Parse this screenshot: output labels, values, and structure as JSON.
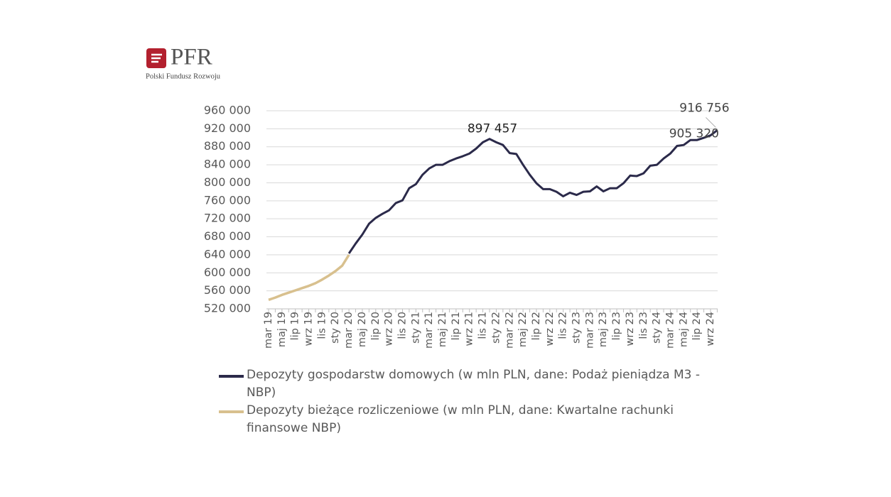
{
  "logo": {
    "name": "PFR",
    "tagline": "Polski Fundusz Rozwoju"
  },
  "chart_data": {
    "type": "line",
    "categories": [
      "mar 19",
      null,
      "maj 19",
      null,
      "lip 19",
      null,
      "wrz 19",
      null,
      "lis 19",
      null,
      "sty 20",
      null,
      "mar 20",
      null,
      "maj 20",
      null,
      "lip 20",
      null,
      "wrz 20",
      null,
      "lis 20",
      null,
      "sty 21",
      null,
      "mar 21",
      null,
      "maj 21",
      null,
      "lip 21",
      null,
      "wrz 21",
      null,
      "lis 21",
      null,
      "sty 22",
      null,
      "mar 22",
      null,
      "maj 22",
      null,
      "lip 22",
      null,
      "wrz 22",
      null,
      "lis 22",
      null,
      "sty 23",
      null,
      "mar 23",
      null,
      "maj 23",
      null,
      "lip 23",
      null,
      "wrz 23",
      null,
      "lis 23",
      null,
      "sty 24",
      null,
      "mar 24",
      null,
      "maj 24",
      null,
      "lip 24",
      null,
      "wrz 24",
      null
    ],
    "series": [
      {
        "name": "Depozyty gospodarstw domowych (w mln PLN, dane: Podaż pieniądza M3 - NBP)",
        "color": "#2b2a4a",
        "values": [
          null,
          null,
          null,
          null,
          null,
          null,
          null,
          null,
          null,
          null,
          null,
          null,
          643000,
          665000,
          685000,
          709000,
          722000,
          731000,
          739000,
          755000,
          761000,
          788000,
          797000,
          818000,
          832000,
          840000,
          840000,
          848000,
          854000,
          859000,
          865000,
          876000,
          890000,
          897457,
          890000,
          884000,
          866000,
          864000,
          840000,
          818000,
          799000,
          786000,
          786000,
          780000,
          770000,
          778000,
          773000,
          780000,
          781000,
          792000,
          781000,
          788000,
          788000,
          799000,
          816000,
          815000,
          821000,
          838000,
          840000,
          854000,
          865000,
          882000,
          884000,
          895000,
          895000,
          900000,
          905320,
          916756
        ],
        "value_labels": [
          null,
          null,
          null,
          null,
          null,
          null,
          null,
          null,
          null,
          null,
          null,
          null,
          null,
          null,
          null,
          null,
          null,
          null,
          null,
          null,
          null,
          null,
          null,
          null,
          null,
          null,
          null,
          null,
          null,
          null,
          null,
          null,
          null,
          "897 457",
          null,
          null,
          null,
          null,
          null,
          null,
          null,
          null,
          null,
          null,
          null,
          null,
          null,
          null,
          null,
          null,
          null,
          null,
          null,
          null,
          null,
          null,
          null,
          null,
          null,
          null,
          null,
          null,
          null,
          null,
          null,
          null,
          "905 320",
          "916 756"
        ]
      },
      {
        "name": "Depozyty bieżące rozliczeniowe (w mln PLN, dane: Kwartalne rachunki finansowe NBP)",
        "color": "#d8c08e",
        "values": [
          540000,
          545000,
          551000,
          556000,
          561000,
          566000,
          571000,
          577000,
          585000,
          594000,
          604000,
          616000,
          640000,
          null,
          null,
          null,
          null,
          null,
          null,
          null,
          null,
          null,
          null,
          null,
          null,
          null,
          null,
          null,
          null,
          null,
          null,
          null,
          null,
          null,
          null,
          null,
          null,
          null,
          null,
          null,
          null,
          null,
          null,
          null,
          null,
          null,
          null,
          null,
          null,
          null,
          null,
          null,
          null,
          null,
          null,
          null,
          null,
          null,
          null,
          null,
          null,
          null,
          null,
          null,
          null,
          null,
          null,
          null
        ]
      }
    ],
    "ylim": [
      520000,
      960000
    ],
    "yticks": [
      {
        "value": 520000,
        "label": "520 000"
      },
      {
        "value": 560000,
        "label": "560 000"
      },
      {
        "value": 600000,
        "label": "600 000"
      },
      {
        "value": 640000,
        "label": "640 000"
      },
      {
        "value": 680000,
        "label": "680 000"
      },
      {
        "value": 720000,
        "label": "720 000"
      },
      {
        "value": 760000,
        "label": "760 000"
      },
      {
        "value": 800000,
        "label": "800 000"
      },
      {
        "value": 840000,
        "label": "840 000"
      },
      {
        "value": 880000,
        "label": "880 000"
      },
      {
        "value": 920000,
        "label": "920 000"
      },
      {
        "value": 960000,
        "label": "960 000"
      }
    ],
    "grid": true,
    "legend": "bottom"
  }
}
